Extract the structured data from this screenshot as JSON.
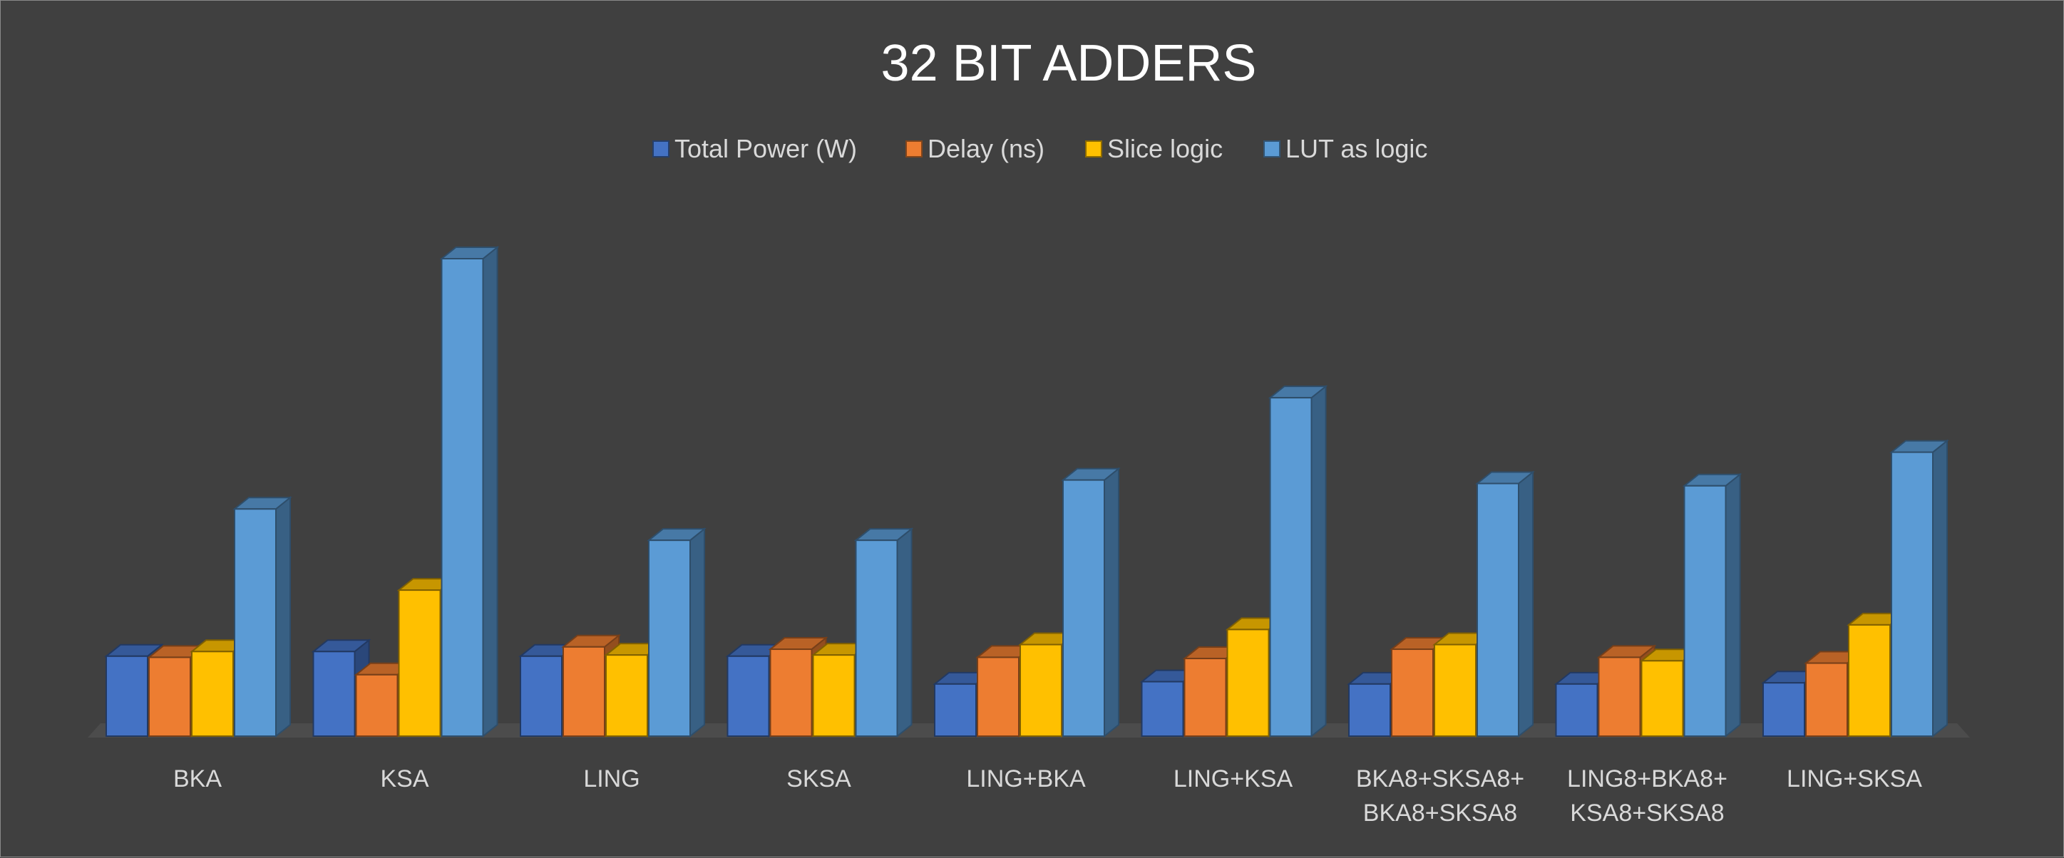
{
  "chart_data": {
    "type": "bar",
    "style": "3d-clustered-column",
    "title": "32 BIT ADDERS",
    "xlabel": "",
    "ylabel": "",
    "y_axis_visible": false,
    "grid": false,
    "legend_position": "top",
    "categories": [
      [
        "BKA"
      ],
      [
        "KSA"
      ],
      [
        "LING"
      ],
      [
        "SKSA"
      ],
      [
        "LING+BKA"
      ],
      [
        "LING+KSA"
      ],
      [
        "BKA8+SKSA8+",
        "BKA8+SKSA8"
      ],
      [
        "LING8+BKA8+",
        "KSA8+SKSA8"
      ],
      [
        "LING+SKSA"
      ]
    ],
    "series": [
      {
        "name": "Total Power (W)",
        "color": "#4472C4",
        "values": [
          34.5,
          36.5,
          34.5,
          34.5,
          22.5,
          23.5,
          22.5,
          22.5,
          23
        ]
      },
      {
        "name": "Delay (ns)",
        "color": "#ED7D31",
        "values": [
          34,
          26.5,
          38.5,
          37.5,
          34,
          33.5,
          37.5,
          34,
          31.5
        ]
      },
      {
        "name": "Slice logic",
        "color": "#FFC000",
        "values": [
          36.5,
          63,
          35,
          35,
          39.5,
          46,
          39.5,
          32.5,
          48
        ]
      },
      {
        "name": "LUT as logic",
        "color": "#5B9BD5",
        "values": [
          98,
          206,
          84.5,
          84.5,
          110.5,
          146,
          109,
          108,
          122.5
        ]
      }
    ],
    "ylim": [
      0,
      210
    ]
  }
}
